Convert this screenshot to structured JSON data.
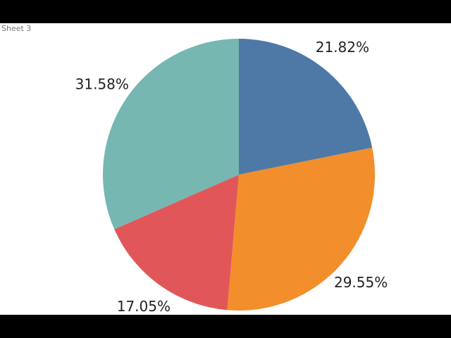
{
  "chart_data": {
    "type": "pie",
    "title": "Sheet 3",
    "values": [
      21.82,
      29.55,
      17.05,
      31.58
    ],
    "value_labels": [
      "21.82%",
      "29.55%",
      "17.05%",
      "31.58%"
    ],
    "colors": [
      "#4e79a7",
      "#f28e2b",
      "#e15759",
      "#76b7b2"
    ]
  }
}
